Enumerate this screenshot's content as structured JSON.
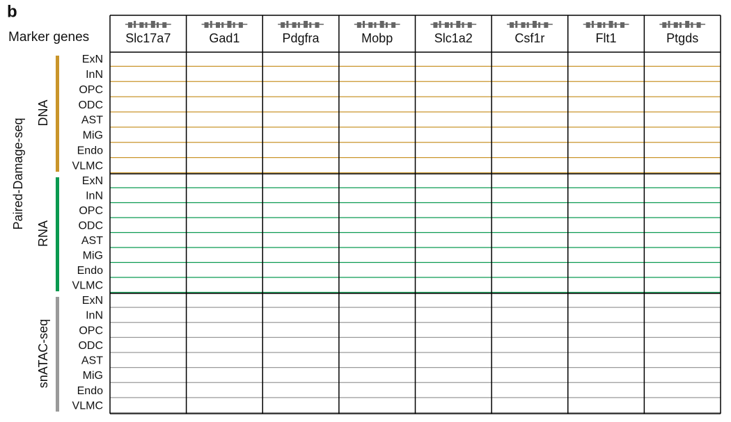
{
  "panel_label": "b",
  "header_label": "Marker genes",
  "genes": [
    "Slc17a7",
    "Gad1",
    "Pdgfra",
    "Mobp",
    "Slc1a2",
    "Csf1r",
    "Flt1",
    "Ptgds"
  ],
  "assay_group": "Paired-Damage-seq",
  "sections": [
    {
      "name": "DNA",
      "rows": [
        "ExN",
        "InN",
        "OPC",
        "ODC",
        "AST",
        "MiG",
        "Endo",
        "VLMC"
      ]
    },
    {
      "name": "RNA",
      "rows": [
        "ExN",
        "InN",
        "OPC",
        "ODC",
        "AST",
        "MiG",
        "Endo",
        "VLMC"
      ]
    },
    {
      "name": "snATAC-seq",
      "rows": [
        "ExN",
        "InN",
        "OPC",
        "ODC",
        "AST",
        "MiG",
        "Endo",
        "VLMC"
      ]
    }
  ]
}
